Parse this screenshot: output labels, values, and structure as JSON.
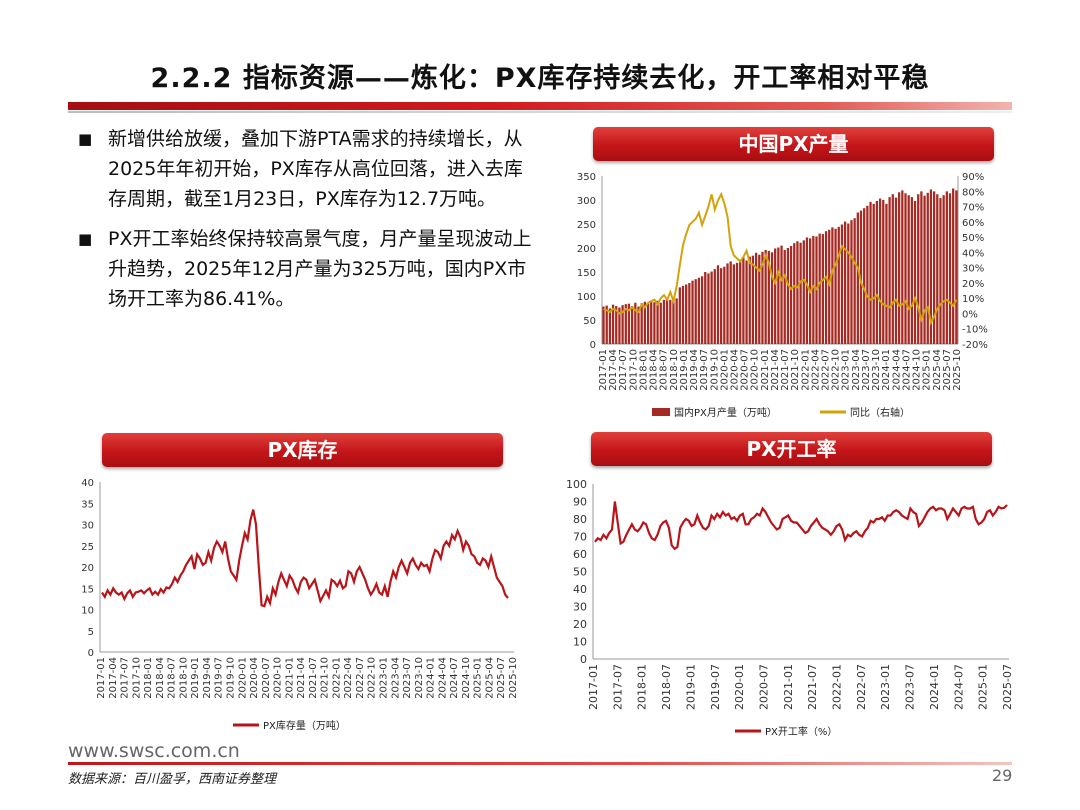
{
  "slide": {
    "title": "2.2.2 指标资源——炼化：PX库存持续去化，开工率相对平稳",
    "bullets": [
      "新增供给放缓，叠加下游PTA需求的持续增长，从2025年年初开始，PX库存从高位回落，进入去库存周期，截至1月23日，PX库存为12.7万吨。",
      "PX开工率始终保持较高景气度，月产量呈现波动上升趋势，2025年12月产量为325万吨，国内PX市场开工率为86.41%。"
    ],
    "bullet_symbol": "■",
    "footer_url": "www.swsc.com.cn",
    "source": "数据来源：百川盈孚，西南证券整理",
    "page_number": "29"
  },
  "colors": {
    "accent": "#c41519",
    "bar": "#a52a23",
    "line_yellow": "#d4a20a",
    "line_red": "#b8141a",
    "axis": "#888888"
  },
  "chart_data": [
    {
      "id": "px_output",
      "type": "bar",
      "title": "中国PX产量",
      "x_ticks": [
        "2017-01",
        "2017-04",
        "2017-07",
        "2017-10",
        "2018-01",
        "2018-04",
        "2018-07",
        "2018-10",
        "2019-01",
        "2019-04",
        "2019-07",
        "2019-10",
        "2020-01",
        "2020-04",
        "2020-07",
        "2020-10",
        "2021-01",
        "2021-04",
        "2021-07",
        "2021-10",
        "2022-01",
        "2022-04",
        "2022-07",
        "2022-10",
        "2023-01",
        "2023-04",
        "2023-07",
        "2023-10",
        "2024-01",
        "2024-04",
        "2024-07",
        "2024-10",
        "2025-01",
        "2025-04",
        "2025-07",
        "2025-10"
      ],
      "ylim": [
        0,
        350
      ],
      "y_ticks": [
        0,
        50,
        100,
        150,
        200,
        250,
        300,
        350
      ],
      "y2lim": [
        -20,
        90
      ],
      "y2_ticks": [
        "-20%",
        "-10%",
        "0%",
        "10%",
        "20%",
        "30%",
        "40%",
        "50%",
        "60%",
        "70%",
        "80%",
        "90%"
      ],
      "grid": false,
      "legend_position": "bottom",
      "series": [
        {
          "name": "国内PX月产量（万吨）",
          "type": "bar",
          "axis": "left",
          "values": [
            78,
            80,
            74,
            82,
            79,
            76,
            81,
            83,
            84,
            79,
            86,
            78,
            85,
            88,
            84,
            89,
            87,
            90,
            86,
            92,
            94,
            92,
            96,
            95,
            118,
            121,
            124,
            127,
            132,
            135,
            138,
            141,
            150,
            147,
            151,
            156,
            164,
            158,
            161,
            168,
            172,
            166,
            169,
            176,
            180,
            174,
            182,
            184,
            190,
            186,
            192,
            196,
            194,
            191,
            199,
            201,
            205,
            196,
            200,
            204,
            210,
            214,
            211,
            216,
            222,
            220,
            225,
            224,
            230,
            229,
            235,
            238,
            243,
            240,
            244,
            249,
            255,
            251,
            258,
            262,
            274,
            278,
            283,
            288,
            296,
            292,
            298,
            303,
            300,
            292,
            306,
            312,
            305,
            316,
            320,
            314,
            310,
            306,
            298,
            312,
            318,
            309,
            315,
            322,
            318,
            312,
            304,
            310,
            318,
            314,
            324,
            320
          ]
        },
        {
          "name": "同比（右轴）",
          "type": "line",
          "axis": "right",
          "values": [
            3,
            2,
            1,
            3,
            2,
            0,
            1,
            3,
            2,
            4,
            2,
            1,
            6,
            4,
            7,
            8,
            9,
            6,
            10,
            12,
            9,
            14,
            8,
            18,
            32,
            45,
            52,
            58,
            60,
            62,
            66,
            58,
            64,
            70,
            78,
            68,
            74,
            78,
            72,
            63,
            44,
            38,
            36,
            34,
            37,
            41,
            33,
            32,
            30,
            28,
            32,
            38,
            33,
            24,
            20,
            27,
            22,
            25,
            19,
            16,
            18,
            17,
            21,
            22,
            19,
            14,
            18,
            16,
            20,
            22,
            24,
            19,
            28,
            32,
            38,
            44,
            42,
            40,
            37,
            33,
            30,
            20,
            16,
            11,
            9,
            10,
            12,
            8,
            6,
            5,
            4,
            7,
            9,
            5,
            6,
            8,
            3,
            5,
            10,
            4,
            -4,
            2,
            4,
            -6,
            -2,
            3,
            6,
            8,
            9,
            7,
            5,
            9
          ]
        }
      ]
    },
    {
      "id": "px_inventory",
      "type": "line",
      "title": "PX库存",
      "x_ticks": [
        "2017-01",
        "2017-04",
        "2017-07",
        "2017-10",
        "2018-01",
        "2018-04",
        "2018-07",
        "2018-10",
        "2019-01",
        "2019-04",
        "2019-07",
        "2019-10",
        "2020-01",
        "2020-04",
        "2020-07",
        "2020-10",
        "2021-01",
        "2021-04",
        "2021-07",
        "2021-10",
        "2022-01",
        "2022-04",
        "2022-07",
        "2022-10",
        "2023-01",
        "2023-04",
        "2023-07",
        "2023-10",
        "2024-01",
        "2024-04",
        "2024-07",
        "2024-10",
        "2025-01",
        "2025-04",
        "2025-07",
        "2025-10"
      ],
      "ylim": [
        0,
        40
      ],
      "y_ticks": [
        0,
        5,
        10,
        15,
        20,
        25,
        30,
        35,
        40
      ],
      "grid": false,
      "legend_position": "bottom",
      "series": [
        {
          "name": "PX库存量（万吨）",
          "values": [
            14,
            13,
            14.5,
            13.5,
            15,
            14,
            13.5,
            14,
            12.5,
            13.8,
            14.5,
            13,
            14,
            14.2,
            14.5,
            13.8,
            14.5,
            15,
            13.5,
            14.2,
            13.5,
            14.8,
            14,
            15.2,
            15,
            16,
            17.5,
            16.5,
            18,
            19,
            20.5,
            21.5,
            22.5,
            19.5,
            23,
            22,
            20.5,
            21,
            23.5,
            21.5,
            24.5,
            26,
            25,
            23.5,
            26,
            22,
            19,
            18,
            17,
            21.5,
            25,
            28,
            26.5,
            31,
            33.5,
            30,
            20,
            11,
            10.8,
            13,
            11.5,
            15,
            13.5,
            16.5,
            18.5,
            17,
            15.5,
            18,
            17,
            15.2,
            14,
            16.5,
            17.5,
            17,
            15,
            16,
            17,
            14.5,
            12,
            13.2,
            14.5,
            13,
            17,
            16.5,
            15.5,
            16.8,
            15,
            15.5,
            19,
            18.5,
            16.5,
            19,
            20,
            18.5,
            17,
            15,
            13.5,
            14.5,
            16,
            14,
            13.5,
            15.5,
            13,
            16.5,
            19,
            17.5,
            20,
            21.5,
            20,
            18.5,
            21,
            22,
            20.5,
            19.5,
            21,
            20.2,
            20.5,
            19,
            22,
            24,
            23.5,
            22,
            25,
            26,
            25,
            27.5,
            26.5,
            28.5,
            27,
            24,
            26,
            25,
            23,
            22.5,
            21,
            20.5,
            22,
            21.5,
            20,
            22.5,
            20,
            17.5,
            16.5,
            15.5,
            13.5,
            12.7
          ]
        }
      ]
    },
    {
      "id": "px_utilization",
      "type": "line",
      "title": "PX开工率",
      "x_ticks": [
        "2017-01",
        "2017-07",
        "2018-01",
        "2018-07",
        "2019-01",
        "2019-07",
        "2020-01",
        "2020-07",
        "2021-01",
        "2021-07",
        "2022-01",
        "2022-07",
        "2023-01",
        "2023-07",
        "2024-01",
        "2024-07",
        "2025-01",
        "2025-07"
      ],
      "ylim": [
        0,
        100
      ],
      "y_ticks": [
        0,
        10,
        20,
        30,
        40,
        50,
        60,
        70,
        80,
        90,
        100
      ],
      "grid": false,
      "legend_position": "bottom",
      "series": [
        {
          "name": "PX开工率（%）",
          "values": [
            67,
            69,
            68,
            71,
            69,
            72,
            74,
            90,
            78,
            66,
            67,
            71,
            74,
            77,
            74,
            73,
            75,
            78,
            77,
            72,
            69,
            68,
            71,
            76,
            78,
            79,
            75,
            65,
            63,
            64,
            75,
            78,
            80,
            79,
            76,
            77,
            82,
            78,
            75,
            74,
            76,
            82,
            80,
            83,
            81,
            84,
            82,
            83,
            80,
            81,
            79,
            82,
            83,
            77,
            77,
            80,
            81,
            83,
            82,
            86,
            84,
            81,
            78,
            76,
            74,
            75,
            80,
            81,
            82,
            79,
            78,
            78,
            76,
            74,
            72,
            73,
            76,
            78,
            80,
            77,
            75,
            74,
            73,
            71,
            73,
            76,
            77,
            74,
            68,
            71,
            70,
            72,
            73,
            71,
            70,
            73,
            75,
            79,
            78,
            80,
            80,
            81,
            79,
            82,
            82,
            84,
            85,
            84,
            82,
            81,
            80,
            86,
            84,
            83,
            76,
            78,
            81,
            84,
            86,
            87,
            85,
            86,
            86,
            85,
            80,
            83,
            86,
            84,
            82,
            86,
            87,
            86,
            86,
            87,
            80,
            77,
            78,
            80,
            84,
            85,
            82,
            84,
            87,
            86,
            86.41,
            88
          ]
        }
      ]
    }
  ]
}
